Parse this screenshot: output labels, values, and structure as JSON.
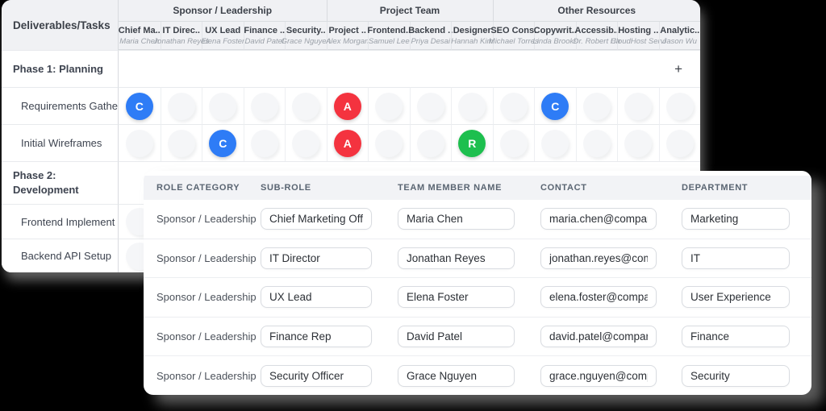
{
  "matrix_panel": {
    "corner_label": "Deliverables/Tasks",
    "add_task_label": "+",
    "groups": [
      {
        "label": "Sponsor / Leadership",
        "span": 5
      },
      {
        "label": "Project Team",
        "span": 4
      },
      {
        "label": "Other Resources",
        "span": 5
      }
    ],
    "columns": [
      {
        "role": "Chief Ma..",
        "name": "Maria Chen"
      },
      {
        "role": "IT Direc..",
        "name": "Jonathan Reyes"
      },
      {
        "role": "UX Lead",
        "name": "Elena Foster"
      },
      {
        "role": "Finance ..",
        "name": "David Patel"
      },
      {
        "role": "Security..",
        "name": "Grace Nguyen"
      },
      {
        "role": "Project ..",
        "name": "Alex Morgan"
      },
      {
        "role": "Frontend..",
        "name": "Samuel Lee"
      },
      {
        "role": "Backend ..",
        "name": "Priya Desai"
      },
      {
        "role": "Designer",
        "name": "Hannah Kim"
      },
      {
        "role": "SEO Cons.",
        "name": "Michael Torres"
      },
      {
        "role": "Copywrit..",
        "name": "Linda Brooks"
      },
      {
        "role": "Accessib..",
        "name": "Dr. Robert Ha"
      },
      {
        "role": "Hosting ..",
        "name": "CloudHost Servi"
      },
      {
        "role": "Analytic..",
        "name": "Jason Wu"
      }
    ],
    "rows": [
      {
        "type": "phase",
        "label": "Phase 1: Planning",
        "add_button": "+"
      },
      {
        "type": "task",
        "label": "Requirements Gathe",
        "assignments": {
          "0": "C",
          "5": "A",
          "10": "C"
        }
      },
      {
        "type": "task",
        "label": "Initial Wireframes",
        "assignments": {
          "2": "C",
          "5": "A",
          "8": "R"
        }
      },
      {
        "type": "phase",
        "label": "Phase 2: Development"
      },
      {
        "type": "task",
        "label": "Frontend Implement",
        "assignments": {}
      },
      {
        "type": "task",
        "label": "Backend API Setup",
        "assignments": {}
      }
    ],
    "badge_colors": {
      "C": "#2e7cf6",
      "A": "#f4333f",
      "R": "#1dbf4e"
    }
  },
  "roles_panel": {
    "headers": [
      "ROLE CATEGORY",
      "SUB-ROLE",
      "TEAM MEMBER NAME",
      "CONTACT",
      "DEPARTMENT"
    ],
    "rows": [
      {
        "category": "Sponsor / Leadership",
        "sub_role": "Chief Marketing Officer",
        "member": "Maria Chen",
        "contact": "maria.chen@company.co",
        "department": "Marketing"
      },
      {
        "category": "Sponsor / Leadership",
        "sub_role": "IT Director",
        "member": "Jonathan Reyes",
        "contact": "jonathan.reyes@compan",
        "department": "IT"
      },
      {
        "category": "Sponsor / Leadership",
        "sub_role": "UX Lead",
        "member": "Elena Foster",
        "contact": "elena.foster@company.c",
        "department": "User Experience"
      },
      {
        "category": "Sponsor / Leadership",
        "sub_role": "Finance Rep",
        "member": "David Patel",
        "contact": "david.patel@company.co",
        "department": "Finance"
      },
      {
        "category": "Sponsor / Leadership",
        "sub_role": "Security Officer",
        "member": "Grace Nguyen",
        "contact": "grace.nguyen@company",
        "department": "Security"
      }
    ]
  }
}
